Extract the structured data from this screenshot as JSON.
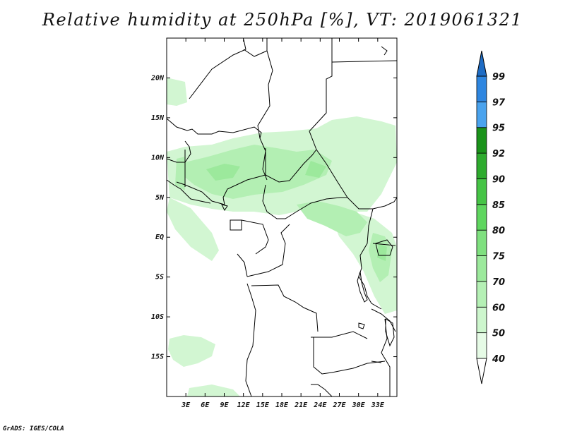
{
  "title": "Relative humidity at 250hPa [%], VT: 2019061321",
  "credit": "GrADS: IGES/COLA",
  "map": {
    "lon_range": [
      0,
      36
    ],
    "lat_range": [
      -20,
      25
    ],
    "lat_ticks": [
      {
        "value": 20,
        "label": "20N"
      },
      {
        "value": 15,
        "label": "15N"
      },
      {
        "value": 10,
        "label": "10N"
      },
      {
        "value": 5,
        "label": "5N"
      },
      {
        "value": 0,
        "label": "EQ"
      },
      {
        "value": -5,
        "label": "5S"
      },
      {
        "value": -10,
        "label": "10S"
      },
      {
        "value": -15,
        "label": "15S"
      }
    ],
    "lon_ticks": [
      {
        "value": 3,
        "label": "3E"
      },
      {
        "value": 6,
        "label": "6E"
      },
      {
        "value": 9,
        "label": "9E"
      },
      {
        "value": 12,
        "label": "12E"
      },
      {
        "value": 15,
        "label": "15E"
      },
      {
        "value": 18,
        "label": "18E"
      },
      {
        "value": 21,
        "label": "21E"
      },
      {
        "value": 24,
        "label": "24E"
      },
      {
        "value": 27,
        "label": "27E"
      },
      {
        "value": 30,
        "label": "30E"
      },
      {
        "value": 33,
        "label": "33E"
      }
    ]
  },
  "colorbar": {
    "levels": [
      {
        "label": "40",
        "color": "#e6fbe6"
      },
      {
        "label": "50",
        "color": "#cdf6cd"
      },
      {
        "label": "60",
        "color": "#b5f0b5"
      },
      {
        "label": "70",
        "color": "#9ce99c"
      },
      {
        "label": "75",
        "color": "#7fe07f"
      },
      {
        "label": "80",
        "color": "#5fd65f"
      },
      {
        "label": "85",
        "color": "#46c446"
      },
      {
        "label": "90",
        "color": "#2eab2e"
      },
      {
        "label": "92",
        "color": "#1a931a"
      },
      {
        "label": "95",
        "color": "#4aa3ee"
      },
      {
        "label": "97",
        "color": "#2e86e0"
      },
      {
        "label": "99",
        "color": "#1e6cc4"
      }
    ]
  }
}
